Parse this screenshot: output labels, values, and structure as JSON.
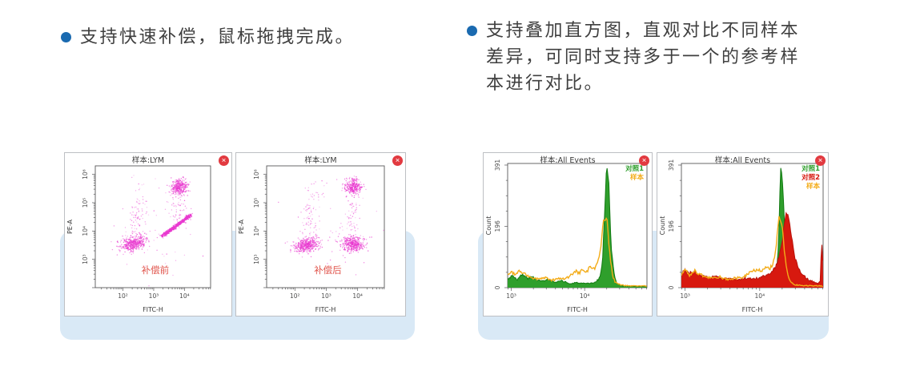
{
  "page": {
    "background": "#ffffff"
  },
  "icons": {
    "close": "✕"
  },
  "colors": {
    "bullet_blue": "#1a6ab0",
    "highlight_band": "#d9e9f6",
    "body_text": "#3f3f3f",
    "panel_border": "#bdbfc3",
    "axis": "#58585a",
    "tick_text": "#4c4c4c",
    "scatter_dot": "#e93ad0",
    "annotation_red": "#e0534a",
    "close_red": "#e23a40",
    "series_green": "#2f9f2c",
    "series_orange": "#f3ac19",
    "series_red": "#d7190f"
  },
  "features": [
    {
      "text": "支持快速补偿，鼠标拖拽完成。"
    },
    {
      "text": "支持叠加直方图，直观对比不同样本差异，可同时支持多于一个的参考样本进行对比。"
    }
  ],
  "chart_data": [
    {
      "type": "scatter",
      "title": "样本:LYM",
      "xlabel": "FITC-H",
      "ylabel": "PE-A",
      "x_log_range": [
        1.1,
        4.85
      ],
      "y_log_range": [
        2.0,
        6.3
      ],
      "x_ticks": [
        {
          "log": 2,
          "label": "10²"
        },
        {
          "log": 3,
          "label": "10³"
        },
        {
          "log": 4,
          "label": "10⁴"
        }
      ],
      "y_ticks": [
        {
          "log": 3,
          "label": "10³"
        },
        {
          "log": 4,
          "label": "10⁴"
        },
        {
          "log": 5,
          "label": "10⁵"
        },
        {
          "log": 6,
          "label": "10⁶"
        }
      ],
      "annotation": {
        "text": "补偿前",
        "color": "#e0534a"
      },
      "dot_color": "#e93ad0",
      "seed": 7,
      "clusters": [
        {
          "cx": 2.36,
          "cy": 3.55,
          "sdx": 0.2,
          "sdy": 0.13,
          "corr": 0.35,
          "n": 430
        },
        {
          "cx": 2.5,
          "cy": 4.6,
          "sdx": 0.18,
          "sdy": 0.5,
          "corr": 0.5,
          "n": 85,
          "faint": true
        },
        {
          "cx": 3.85,
          "cy": 5.55,
          "sdx": 0.13,
          "sdy": 0.14,
          "corr": 0,
          "n": 330
        },
        {
          "cx": 3.8,
          "cy": 4.95,
          "sdx": 0.15,
          "sdy": 0.35,
          "corr": 0,
          "n": 60,
          "faint": true
        },
        {
          "cx": 3.1,
          "cy": 4.3,
          "sdx": 0.85,
          "sdy": 0.8,
          "corr": 0,
          "n": 55,
          "faint": true
        }
      ],
      "streak": {
        "x1": 3.29,
        "y1": 3.83,
        "x2": 4.21,
        "y2": 4.57,
        "spread": 0.03,
        "n": 540
      }
    },
    {
      "type": "scatter",
      "title": "样本:LYM",
      "xlabel": "FITC-H",
      "ylabel": "PE-A",
      "x_log_range": [
        1.1,
        4.85
      ],
      "y_log_range": [
        2.0,
        6.3
      ],
      "x_ticks": [
        {
          "log": 2,
          "label": "10²"
        },
        {
          "log": 3,
          "label": "10³"
        },
        {
          "log": 4,
          "label": "10⁴"
        }
      ],
      "y_ticks": [
        {
          "log": 3,
          "label": "10³"
        },
        {
          "log": 4,
          "label": "10⁴"
        },
        {
          "log": 5,
          "label": "10⁵"
        },
        {
          "log": 6,
          "label": "10⁶"
        }
      ],
      "annotation": {
        "text": "补偿后",
        "color": "#e0534a"
      },
      "dot_color": "#e93ad0",
      "seed": 11,
      "clusters": [
        {
          "cx": 2.36,
          "cy": 3.5,
          "sdx": 0.2,
          "sdy": 0.13,
          "corr": 0.3,
          "n": 430
        },
        {
          "cx": 2.5,
          "cy": 4.65,
          "sdx": 0.18,
          "sdy": 0.5,
          "corr": 0.5,
          "n": 80,
          "faint": true
        },
        {
          "cx": 3.85,
          "cy": 5.55,
          "sdx": 0.13,
          "sdy": 0.14,
          "corr": 0,
          "n": 310
        },
        {
          "cx": 3.85,
          "cy": 3.55,
          "sdx": 0.17,
          "sdy": 0.13,
          "corr": 0,
          "n": 400
        },
        {
          "cx": 3.85,
          "cy": 4.55,
          "sdx": 0.12,
          "sdy": 0.38,
          "corr": 0,
          "n": 55,
          "faint": true
        },
        {
          "cx": 3.0,
          "cy": 4.2,
          "sdx": 0.8,
          "sdy": 0.8,
          "corr": 0,
          "n": 50,
          "faint": true
        }
      ]
    },
    {
      "type": "histogram",
      "title": "样本:All Events",
      "xlabel": "FITC-H",
      "ylabel": "Count",
      "x_log_range": [
        2.95,
        4.85
      ],
      "ymax": 391,
      "x_ticks": [
        {
          "log": 3,
          "label": "10³"
        },
        {
          "log": 4,
          "label": "10⁴"
        }
      ],
      "y_ticks": [
        {
          "value": 0,
          "label": "0"
        },
        {
          "value": 196,
          "label": "196"
        },
        {
          "value": 391,
          "label": "391"
        }
      ],
      "legend": [
        {
          "label": "对照1",
          "color": "#2f9f2c"
        },
        {
          "label": "样本",
          "color": "#f3ac19"
        }
      ],
      "series": [
        {
          "name": "对照1",
          "color": "#2f9f2c",
          "stroke": "#117a11",
          "fill": true,
          "seed": 3,
          "points": [
            [
              2.95,
              28
            ],
            [
              3.02,
              40
            ],
            [
              3.08,
              26
            ],
            [
              3.15,
              42
            ],
            [
              3.22,
              30
            ],
            [
              3.3,
              34
            ],
            [
              3.4,
              20
            ],
            [
              3.5,
              26
            ],
            [
              3.6,
              16
            ],
            [
              3.7,
              22
            ],
            [
              3.8,
              12
            ],
            [
              3.9,
              16
            ],
            [
              4.0,
              12
            ],
            [
              4.1,
              14
            ],
            [
              4.15,
              18
            ],
            [
              4.2,
              30
            ],
            [
              4.24,
              70
            ],
            [
              4.27,
              230
            ],
            [
              4.3,
              391
            ],
            [
              4.33,
              340
            ],
            [
              4.36,
              130
            ],
            [
              4.4,
              45
            ],
            [
              4.44,
              14
            ],
            [
              4.5,
              6
            ],
            [
              4.6,
              5
            ],
            [
              4.7,
              4
            ],
            [
              4.8,
              4
            ],
            [
              4.85,
              3
            ]
          ]
        },
        {
          "name": "样本",
          "color": "#f3ac19",
          "fill": false,
          "seed": 4,
          "points": [
            [
              2.95,
              40
            ],
            [
              3.0,
              55
            ],
            [
              3.05,
              38
            ],
            [
              3.1,
              52
            ],
            [
              3.17,
              44
            ],
            [
              3.25,
              34
            ],
            [
              3.35,
              28
            ],
            [
              3.45,
              32
            ],
            [
              3.55,
              24
            ],
            [
              3.65,
              28
            ],
            [
              3.75,
              30
            ],
            [
              3.82,
              40
            ],
            [
              3.88,
              52
            ],
            [
              3.93,
              44
            ],
            [
              3.98,
              60
            ],
            [
              4.03,
              52
            ],
            [
              4.08,
              66
            ],
            [
              4.13,
              58
            ],
            [
              4.17,
              76
            ],
            [
              4.2,
              95
            ],
            [
              4.23,
              150
            ],
            [
              4.26,
              225
            ],
            [
              4.28,
              210
            ],
            [
              4.3,
              228
            ],
            [
              4.32,
              170
            ],
            [
              4.35,
              90
            ],
            [
              4.38,
              40
            ],
            [
              4.42,
              16
            ],
            [
              4.5,
              8
            ],
            [
              4.6,
              6
            ],
            [
              4.7,
              5
            ],
            [
              4.8,
              6
            ],
            [
              4.85,
              5
            ]
          ]
        }
      ]
    },
    {
      "type": "histogram",
      "title": "样本:All Events",
      "xlabel": "FITC-H",
      "ylabel": "Count",
      "x_log_range": [
        2.95,
        4.85
      ],
      "ymax": 391,
      "x_ticks": [
        {
          "log": 3,
          "label": "10³"
        },
        {
          "log": 4,
          "label": "10⁴"
        }
      ],
      "y_ticks": [
        {
          "value": 0,
          "label": "0"
        },
        {
          "value": 196,
          "label": "196"
        },
        {
          "value": 391,
          "label": "391"
        }
      ],
      "legend": [
        {
          "label": "对照1",
          "color": "#2f9f2c"
        },
        {
          "label": "对照2",
          "color": "#d7190f"
        },
        {
          "label": "样本",
          "color": "#f3ac19"
        }
      ],
      "series": [
        {
          "name": "对照1",
          "color": "#2f9f2c",
          "stroke": "#117a11",
          "fill": true,
          "seed": 5,
          "points": [
            [
              2.95,
              30
            ],
            [
              3.02,
              42
            ],
            [
              3.1,
              30
            ],
            [
              3.18,
              38
            ],
            [
              3.25,
              26
            ],
            [
              3.35,
              30
            ],
            [
              3.45,
              20
            ],
            [
              3.55,
              24
            ],
            [
              3.65,
              16
            ],
            [
              3.75,
              20
            ],
            [
              3.85,
              14
            ],
            [
              3.95,
              16
            ],
            [
              4.05,
              14
            ],
            [
              4.12,
              16
            ],
            [
              4.18,
              24
            ],
            [
              4.22,
              45
            ],
            [
              4.25,
              120
            ],
            [
              4.28,
              391
            ],
            [
              4.31,
              330
            ],
            [
              4.34,
              150
            ],
            [
              4.38,
              60
            ],
            [
              4.42,
              20
            ],
            [
              4.48,
              8
            ],
            [
              4.6,
              5
            ],
            [
              4.7,
              4
            ],
            [
              4.85,
              3
            ]
          ]
        },
        {
          "name": "对照2",
          "color": "#d7190f",
          "stroke": "#b8120a",
          "fill": true,
          "seed": 6,
          "points": [
            [
              2.95,
              45
            ],
            [
              3.0,
              60
            ],
            [
              3.05,
              42
            ],
            [
              3.1,
              55
            ],
            [
              3.15,
              48
            ],
            [
              3.2,
              38
            ],
            [
              3.3,
              32
            ],
            [
              3.4,
              36
            ],
            [
              3.5,
              28
            ],
            [
              3.6,
              32
            ],
            [
              3.7,
              26
            ],
            [
              3.8,
              30
            ],
            [
              3.9,
              28
            ],
            [
              4.0,
              32
            ],
            [
              4.05,
              36
            ],
            [
              4.1,
              42
            ],
            [
              4.15,
              50
            ],
            [
              4.2,
              62
            ],
            [
              4.25,
              90
            ],
            [
              4.3,
              140
            ],
            [
              4.33,
              210
            ],
            [
              4.36,
              240
            ],
            [
              4.39,
              225
            ],
            [
              4.43,
              160
            ],
            [
              4.47,
              95
            ],
            [
              4.52,
              60
            ],
            [
              4.58,
              40
            ],
            [
              4.65,
              26
            ],
            [
              4.72,
              18
            ],
            [
              4.78,
              14
            ],
            [
              4.81,
              22
            ],
            [
              4.83,
              150
            ],
            [
              4.845,
              100
            ],
            [
              4.85,
              25
            ]
          ]
        },
        {
          "name": "样本",
          "color": "#f3ac19",
          "fill": false,
          "seed": 8,
          "points": [
            [
              2.95,
              42
            ],
            [
              3.0,
              58
            ],
            [
              3.06,
              40
            ],
            [
              3.12,
              54
            ],
            [
              3.18,
              46
            ],
            [
              3.26,
              36
            ],
            [
              3.36,
              30
            ],
            [
              3.46,
              34
            ],
            [
              3.56,
              26
            ],
            [
              3.66,
              30
            ],
            [
              3.76,
              32
            ],
            [
              3.84,
              44
            ],
            [
              3.9,
              50
            ],
            [
              3.96,
              58
            ],
            [
              4.02,
              52
            ],
            [
              4.08,
              64
            ],
            [
              4.14,
              60
            ],
            [
              4.18,
              80
            ],
            [
              4.21,
              110
            ],
            [
              4.24,
              185
            ],
            [
              4.26,
              230
            ],
            [
              4.28,
              215
            ],
            [
              4.3,
              200
            ],
            [
              4.33,
              120
            ],
            [
              4.36,
              60
            ],
            [
              4.4,
              24
            ],
            [
              4.46,
              10
            ],
            [
              4.55,
              7
            ],
            [
              4.65,
              6
            ],
            [
              4.75,
              6
            ],
            [
              4.85,
              5
            ]
          ]
        }
      ]
    }
  ]
}
